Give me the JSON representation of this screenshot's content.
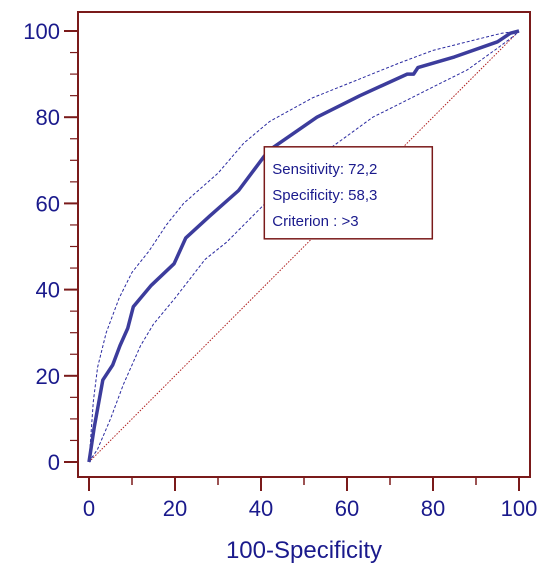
{
  "chart_data": {
    "type": "line",
    "title": "",
    "xlabel": "100-Specificity",
    "ylabel": "",
    "xlim": [
      0,
      100
    ],
    "ylim": [
      0,
      100
    ],
    "xticks": [
      0,
      20,
      40,
      60,
      80,
      100
    ],
    "yticks": [
      0,
      20,
      40,
      60,
      80,
      100
    ],
    "grid": false,
    "series": [
      {
        "role": "roc-curve",
        "x": [
          0,
          1.2,
          3.2,
          5.5,
          7.2,
          9.0,
          10.3,
          14.5,
          19.8,
          22.5,
          28.0,
          34.8,
          41.7,
          53.0,
          63.0,
          74.0,
          75.5,
          76.5,
          85.0,
          95.0,
          98.0,
          100
        ],
        "y": [
          0,
          8.0,
          19.0,
          22.5,
          27.0,
          31.0,
          36.0,
          41.0,
          46.0,
          52.0,
          57.0,
          63.0,
          72.2,
          80.0,
          85.0,
          90.0,
          90.0,
          91.5,
          94.0,
          97.5,
          99.5,
          100
        ]
      },
      {
        "role": "upper-confidence-band",
        "x": [
          0,
          1.0,
          2.0,
          4.0,
          7.0,
          10.0,
          14.0,
          18.0,
          22.0,
          30.0,
          36.0,
          42.0,
          52.0,
          62.0,
          72.0,
          80.0,
          90.0,
          96.0,
          100
        ],
        "y": [
          0,
          14.0,
          22.0,
          30.0,
          38.0,
          44.0,
          49.0,
          55.0,
          60.0,
          67.0,
          74.0,
          79.0,
          84.5,
          88.5,
          92.5,
          95.5,
          98.0,
          99.5,
          100
        ]
      },
      {
        "role": "lower-confidence-band",
        "x": [
          0,
          2.0,
          5.0,
          8.0,
          12.0,
          15.0,
          20.0,
          27.0,
          32.0,
          40.0,
          46.0,
          55.0,
          66.0,
          76.0,
          80.0,
          88.0,
          95.0,
          99.0,
          100
        ],
        "y": [
          0,
          3.0,
          10.0,
          18.0,
          27.0,
          32.0,
          38.0,
          47.0,
          51.0,
          59.0,
          65.0,
          72.0,
          80.0,
          85.0,
          87.0,
          91.0,
          96.0,
          99.0,
          100
        ]
      },
      {
        "role": "reference-diagonal",
        "x": [
          0,
          100
        ],
        "y": [
          0,
          100
        ]
      }
    ],
    "annotation": {
      "lines": [
        "Sensitivity: 72,2",
        "Specificity: 58,3",
        "Criterion : >3"
      ],
      "point": [
        41.7,
        72.2
      ]
    },
    "colors": {
      "curve": "#3c3c9c",
      "band": "#2a2aa0",
      "diagonal": "#b02020",
      "frame": "#7a1a1a",
      "text": "#1a1a8c"
    }
  }
}
